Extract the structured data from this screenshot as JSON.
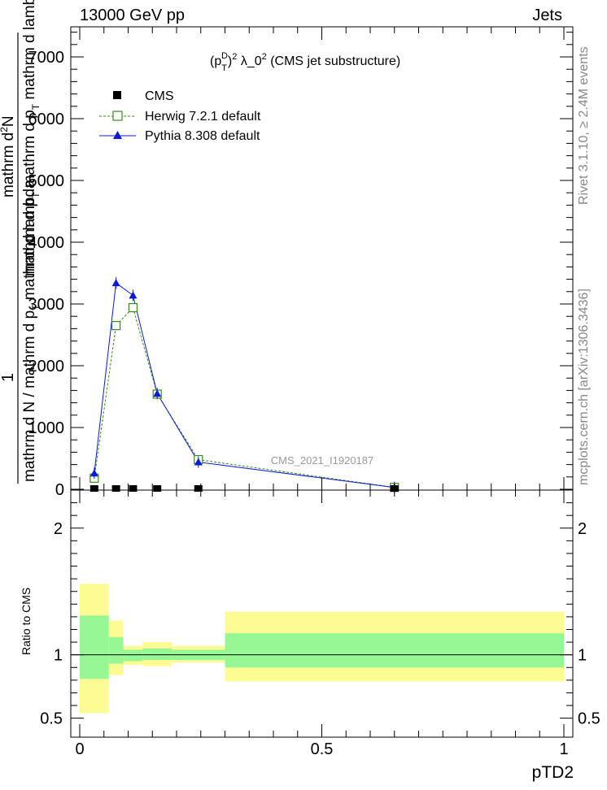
{
  "header": {
    "left": "13000 GeV pp",
    "right": "Jets"
  },
  "side": {
    "rivet": "Rivet 3.1.10, ≥ 2.4M events",
    "mcplots": "mcplots.cern.ch [arXiv:1306.3436]"
  },
  "chart_data": {
    "type": "line",
    "title": "(p_T^D)^2 λ_0^2 (CMS jet substructure)",
    "title_parts": {
      "open": "(p",
      "sub": "T",
      "sup": "D",
      "close": ")",
      "sq": "2",
      "mid": " λ_0",
      "sq2": "2",
      "tail": " (CMS jet substructure)"
    },
    "analysis_label": "CMS_2021_I1920187",
    "xlabel": "pTD2",
    "ylabel_main": {
      "one": "1",
      "bottom": "mathrm d N / mathrm d p",
      "bottom_sub": "T",
      "bottom_tail": " mathrm d lambda",
      "top": "mathrm d",
      "top_sup": "2",
      "top_tail": "N",
      "top2": "mathrm d p",
      "top2_sub": "T",
      "top2_tail": " mathrm d p",
      "top2_tail_sub": "T",
      "top2_end": " mathrm d lambda"
    },
    "ylabel_ratio": "Ratio to CMS",
    "xlim": [
      0,
      1
    ],
    "ylim_main": [
      0,
      7500
    ],
    "ylim_ratio": [
      0.35,
      2.3
    ],
    "x_ticks": [
      {
        "v": 0,
        "label": "0"
      },
      {
        "v": 0.5,
        "label": "0.5"
      },
      {
        "v": 1,
        "label": "1"
      }
    ],
    "y_ticks_main": [
      {
        "v": 0,
        "label": "0"
      },
      {
        "v": 1000,
        "label": "1000"
      },
      {
        "v": 2000,
        "label": "2000"
      },
      {
        "v": 3000,
        "label": "3000"
      },
      {
        "v": 4000,
        "label": "4000"
      },
      {
        "v": 5000,
        "label": "5000"
      },
      {
        "v": 6000,
        "label": "6000"
      },
      {
        "v": 7000,
        "label": "7000"
      }
    ],
    "y_ticks_ratio": [
      {
        "v": 0.5,
        "label": "0.5"
      },
      {
        "v": 1,
        "label": "1"
      },
      {
        "v": 2,
        "label": "2"
      }
    ],
    "legend_position": "top-left",
    "legend": [
      {
        "name": "CMS",
        "marker": "square-filled",
        "color": "#000000"
      },
      {
        "name": "Herwig 7.2.1 default",
        "marker": "square-open",
        "color": "#3a8a1a"
      },
      {
        "name": "Pythia 8.308 default",
        "marker": "triangle",
        "color": "#0a1ad6"
      }
    ],
    "bins": [
      {
        "lo": 0,
        "hi": 0.06
      },
      {
        "lo": 0.06,
        "hi": 0.09
      },
      {
        "lo": 0.09,
        "hi": 0.13
      },
      {
        "lo": 0.13,
        "hi": 0.19
      },
      {
        "lo": 0.19,
        "hi": 0.3
      },
      {
        "lo": 0.3,
        "hi": 1.0
      }
    ],
    "series": [
      {
        "name": "CMS",
        "x": [
          0.03,
          0.075,
          0.11,
          0.16,
          0.245,
          0.65
        ],
        "y": [
          0,
          0,
          0,
          0,
          0,
          0
        ]
      },
      {
        "name": "Herwig 7.2.1 default",
        "x": [
          0.03,
          0.075,
          0.11,
          0.16,
          0.245,
          0.65
        ],
        "y": [
          180,
          2650,
          2940,
          1540,
          480,
          30
        ]
      },
      {
        "name": "Pythia 8.308 default",
        "x": [
          0.03,
          0.075,
          0.11,
          0.16,
          0.245,
          0.65
        ],
        "y": [
          260,
          3340,
          3140,
          1550,
          440,
          30
        ]
      }
    ],
    "ratio_bands": [
      {
        "lo": 0,
        "hi": 0.06,
        "yellow": [
          0.54,
          1.56
        ],
        "green": [
          0.81,
          1.31
        ]
      },
      {
        "lo": 0.06,
        "hi": 0.09,
        "yellow": [
          0.84,
          1.27
        ],
        "green": [
          0.93,
          1.14
        ]
      },
      {
        "lo": 0.09,
        "hi": 0.13,
        "yellow": [
          0.92,
          1.07
        ],
        "green": [
          0.95,
          1.04
        ]
      },
      {
        "lo": 0.13,
        "hi": 0.19,
        "yellow": [
          0.91,
          1.1
        ],
        "green": [
          0.96,
          1.05
        ]
      },
      {
        "lo": 0.19,
        "hi": 0.3,
        "yellow": [
          0.94,
          1.07
        ],
        "green": [
          0.96,
          1.04
        ]
      },
      {
        "lo": 0.3,
        "hi": 1.0,
        "yellow": [
          0.79,
          1.34
        ],
        "green": [
          0.9,
          1.17
        ]
      }
    ]
  },
  "colors": {
    "yellow_band": "#fdfb93",
    "green_band": "#95f895",
    "herwig": "#3a8a1a",
    "pythia": "#0a1ad6",
    "cms": "#000000",
    "side_text": "#888888"
  }
}
